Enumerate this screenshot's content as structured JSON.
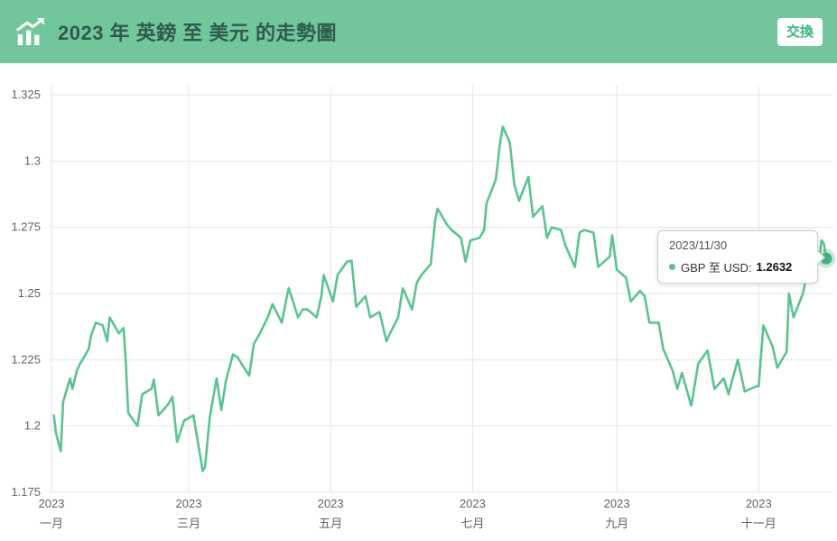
{
  "header": {
    "title": "2023 年 英鎊 至 美元 的走勢圖",
    "swap_button": "交換"
  },
  "tooltip": {
    "date": "2023/11/30",
    "label": "GBP 至 USD:",
    "value": "1.2632"
  },
  "colors": {
    "header_bg": "#72c69c",
    "title_text": "#2f5b4f",
    "accent": "#3ab57e",
    "line": "#5cc390",
    "marker": "#45b182",
    "grid": "#e4e4e4",
    "axis_text": "#5f6368"
  },
  "chart_data": {
    "type": "line",
    "title": "2023 年 英鎊 至 美元 的走勢圖",
    "xlabel": "",
    "ylabel": "",
    "ylim": [
      1.175,
      1.325
    ],
    "grid": true,
    "legend_position": "tooltip",
    "yticks": [
      {
        "label": "1.175",
        "value": 1.175
      },
      {
        "label": "1.2",
        "value": 1.2
      },
      {
        "label": "1.225",
        "value": 1.225
      },
      {
        "label": "1.25",
        "value": 1.25
      },
      {
        "label": "1.275",
        "value": 1.275
      },
      {
        "label": "1.3",
        "value": 1.3
      },
      {
        "label": "1.325",
        "value": 1.325
      }
    ],
    "xticks": [
      {
        "year": "2023",
        "month": "一月",
        "date": "2023-01-01"
      },
      {
        "year": "2023",
        "month": "三月",
        "date": "2023-03-01"
      },
      {
        "year": "2023",
        "month": "五月",
        "date": "2023-05-01"
      },
      {
        "year": "2023",
        "month": "七月",
        "date": "2023-07-01"
      },
      {
        "year": "2023",
        "month": "九月",
        "date": "2023-09-01"
      },
      {
        "year": "2023",
        "month": "十一月",
        "date": "2023-11-01"
      }
    ],
    "series": [
      {
        "name": "GBP 至 USD",
        "points": [
          [
            "2023-01-02",
            1.204
          ],
          [
            "2023-01-03",
            1.197
          ],
          [
            "2023-01-05",
            1.1905
          ],
          [
            "2023-01-06",
            1.209
          ],
          [
            "2023-01-09",
            1.218
          ],
          [
            "2023-01-10",
            1.214
          ],
          [
            "2023-01-12",
            1.221
          ],
          [
            "2023-01-13",
            1.223
          ],
          [
            "2023-01-17",
            1.229
          ],
          [
            "2023-01-18",
            1.234
          ],
          [
            "2023-01-20",
            1.239
          ],
          [
            "2023-01-23",
            1.238
          ],
          [
            "2023-01-25",
            1.232
          ],
          [
            "2023-01-26",
            1.241
          ],
          [
            "2023-01-30",
            1.235
          ],
          [
            "2023-02-01",
            1.237
          ],
          [
            "2023-02-02",
            1.223
          ],
          [
            "2023-02-03",
            1.205
          ],
          [
            "2023-02-07",
            1.2
          ],
          [
            "2023-02-09",
            1.212
          ],
          [
            "2023-02-13",
            1.214
          ],
          [
            "2023-02-14",
            1.2175
          ],
          [
            "2023-02-16",
            1.204
          ],
          [
            "2023-02-20",
            1.208
          ],
          [
            "2023-02-22",
            1.211
          ],
          [
            "2023-02-24",
            1.194
          ],
          [
            "2023-02-27",
            1.202
          ],
          [
            "2023-03-01",
            1.203
          ],
          [
            "2023-03-03",
            1.204
          ],
          [
            "2023-03-07",
            1.183
          ],
          [
            "2023-03-08",
            1.1845
          ],
          [
            "2023-03-10",
            1.203
          ],
          [
            "2023-03-13",
            1.218
          ],
          [
            "2023-03-15",
            1.206
          ],
          [
            "2023-03-17",
            1.217
          ],
          [
            "2023-03-20",
            1.227
          ],
          [
            "2023-03-22",
            1.226
          ],
          [
            "2023-03-24",
            1.223
          ],
          [
            "2023-03-27",
            1.219
          ],
          [
            "2023-03-29",
            1.231
          ],
          [
            "2023-03-31",
            1.234
          ],
          [
            "2023-04-04",
            1.241
          ],
          [
            "2023-04-06",
            1.246
          ],
          [
            "2023-04-10",
            1.239
          ],
          [
            "2023-04-12",
            1.248
          ],
          [
            "2023-04-13",
            1.252
          ],
          [
            "2023-04-17",
            1.241
          ],
          [
            "2023-04-19",
            1.244
          ],
          [
            "2023-04-21",
            1.244
          ],
          [
            "2023-04-25",
            1.241
          ],
          [
            "2023-04-27",
            1.249
          ],
          [
            "2023-04-28",
            1.257
          ],
          [
            "2023-05-02",
            1.247
          ],
          [
            "2023-05-04",
            1.257
          ],
          [
            "2023-05-08",
            1.262
          ],
          [
            "2023-05-10",
            1.2624
          ],
          [
            "2023-05-12",
            1.245
          ],
          [
            "2023-05-16",
            1.249
          ],
          [
            "2023-05-18",
            1.241
          ],
          [
            "2023-05-22",
            1.243
          ],
          [
            "2023-05-25",
            1.232
          ],
          [
            "2023-05-26",
            1.234
          ],
          [
            "2023-05-30",
            1.241
          ],
          [
            "2023-06-01",
            1.252
          ],
          [
            "2023-06-05",
            1.244
          ],
          [
            "2023-06-07",
            1.254
          ],
          [
            "2023-06-09",
            1.257
          ],
          [
            "2023-06-13",
            1.261
          ],
          [
            "2023-06-15",
            1.278
          ],
          [
            "2023-06-16",
            1.282
          ],
          [
            "2023-06-20",
            1.276
          ],
          [
            "2023-06-22",
            1.274
          ],
          [
            "2023-06-26",
            1.271
          ],
          [
            "2023-06-28",
            1.262
          ],
          [
            "2023-06-30",
            1.27
          ],
          [
            "2023-07-04",
            1.271
          ],
          [
            "2023-07-06",
            1.274
          ],
          [
            "2023-07-07",
            1.284
          ],
          [
            "2023-07-11",
            1.293
          ],
          [
            "2023-07-13",
            1.308
          ],
          [
            "2023-07-14",
            1.313
          ],
          [
            "2023-07-17",
            1.307
          ],
          [
            "2023-07-19",
            1.291
          ],
          [
            "2023-07-21",
            1.285
          ],
          [
            "2023-07-25",
            1.294
          ],
          [
            "2023-07-27",
            1.279
          ],
          [
            "2023-07-31",
            1.283
          ],
          [
            "2023-08-02",
            1.271
          ],
          [
            "2023-08-04",
            1.275
          ],
          [
            "2023-08-08",
            1.274
          ],
          [
            "2023-08-10",
            1.268
          ],
          [
            "2023-08-14",
            1.26
          ],
          [
            "2023-08-16",
            1.273
          ],
          [
            "2023-08-18",
            1.274
          ],
          [
            "2023-08-22",
            1.273
          ],
          [
            "2023-08-24",
            1.26
          ],
          [
            "2023-08-29",
            1.264
          ],
          [
            "2023-08-30",
            1.272
          ],
          [
            "2023-09-01",
            1.259
          ],
          [
            "2023-09-05",
            1.256
          ],
          [
            "2023-09-07",
            1.247
          ],
          [
            "2023-09-11",
            1.251
          ],
          [
            "2023-09-13",
            1.249
          ],
          [
            "2023-09-15",
            1.239
          ],
          [
            "2023-09-19",
            1.239
          ],
          [
            "2023-09-21",
            1.229
          ],
          [
            "2023-09-25",
            1.221
          ],
          [
            "2023-09-27",
            1.214
          ],
          [
            "2023-09-29",
            1.22
          ],
          [
            "2023-10-03",
            1.2077
          ],
          [
            "2023-10-06",
            1.2235
          ],
          [
            "2023-10-10",
            1.2285
          ],
          [
            "2023-10-13",
            1.214
          ],
          [
            "2023-10-17",
            1.218
          ],
          [
            "2023-10-19",
            1.212
          ],
          [
            "2023-10-23",
            1.225
          ],
          [
            "2023-10-26",
            1.213
          ],
          [
            "2023-10-31",
            1.215
          ],
          [
            "2023-11-01",
            1.215
          ],
          [
            "2023-11-03",
            1.238
          ],
          [
            "2023-11-07",
            1.23
          ],
          [
            "2023-11-09",
            1.222
          ],
          [
            "2023-11-13",
            1.228
          ],
          [
            "2023-11-14",
            1.25
          ],
          [
            "2023-11-16",
            1.241
          ],
          [
            "2023-11-20",
            1.25
          ],
          [
            "2023-11-21",
            1.254
          ],
          [
            "2023-11-24",
            1.26
          ],
          [
            "2023-11-27",
            1.263
          ],
          [
            "2023-11-28",
            1.27
          ],
          [
            "2023-11-29",
            1.269
          ],
          [
            "2023-11-30",
            1.2632
          ]
        ]
      }
    ],
    "last_point": {
      "date": "2023/11/30",
      "value": 1.2632
    }
  }
}
